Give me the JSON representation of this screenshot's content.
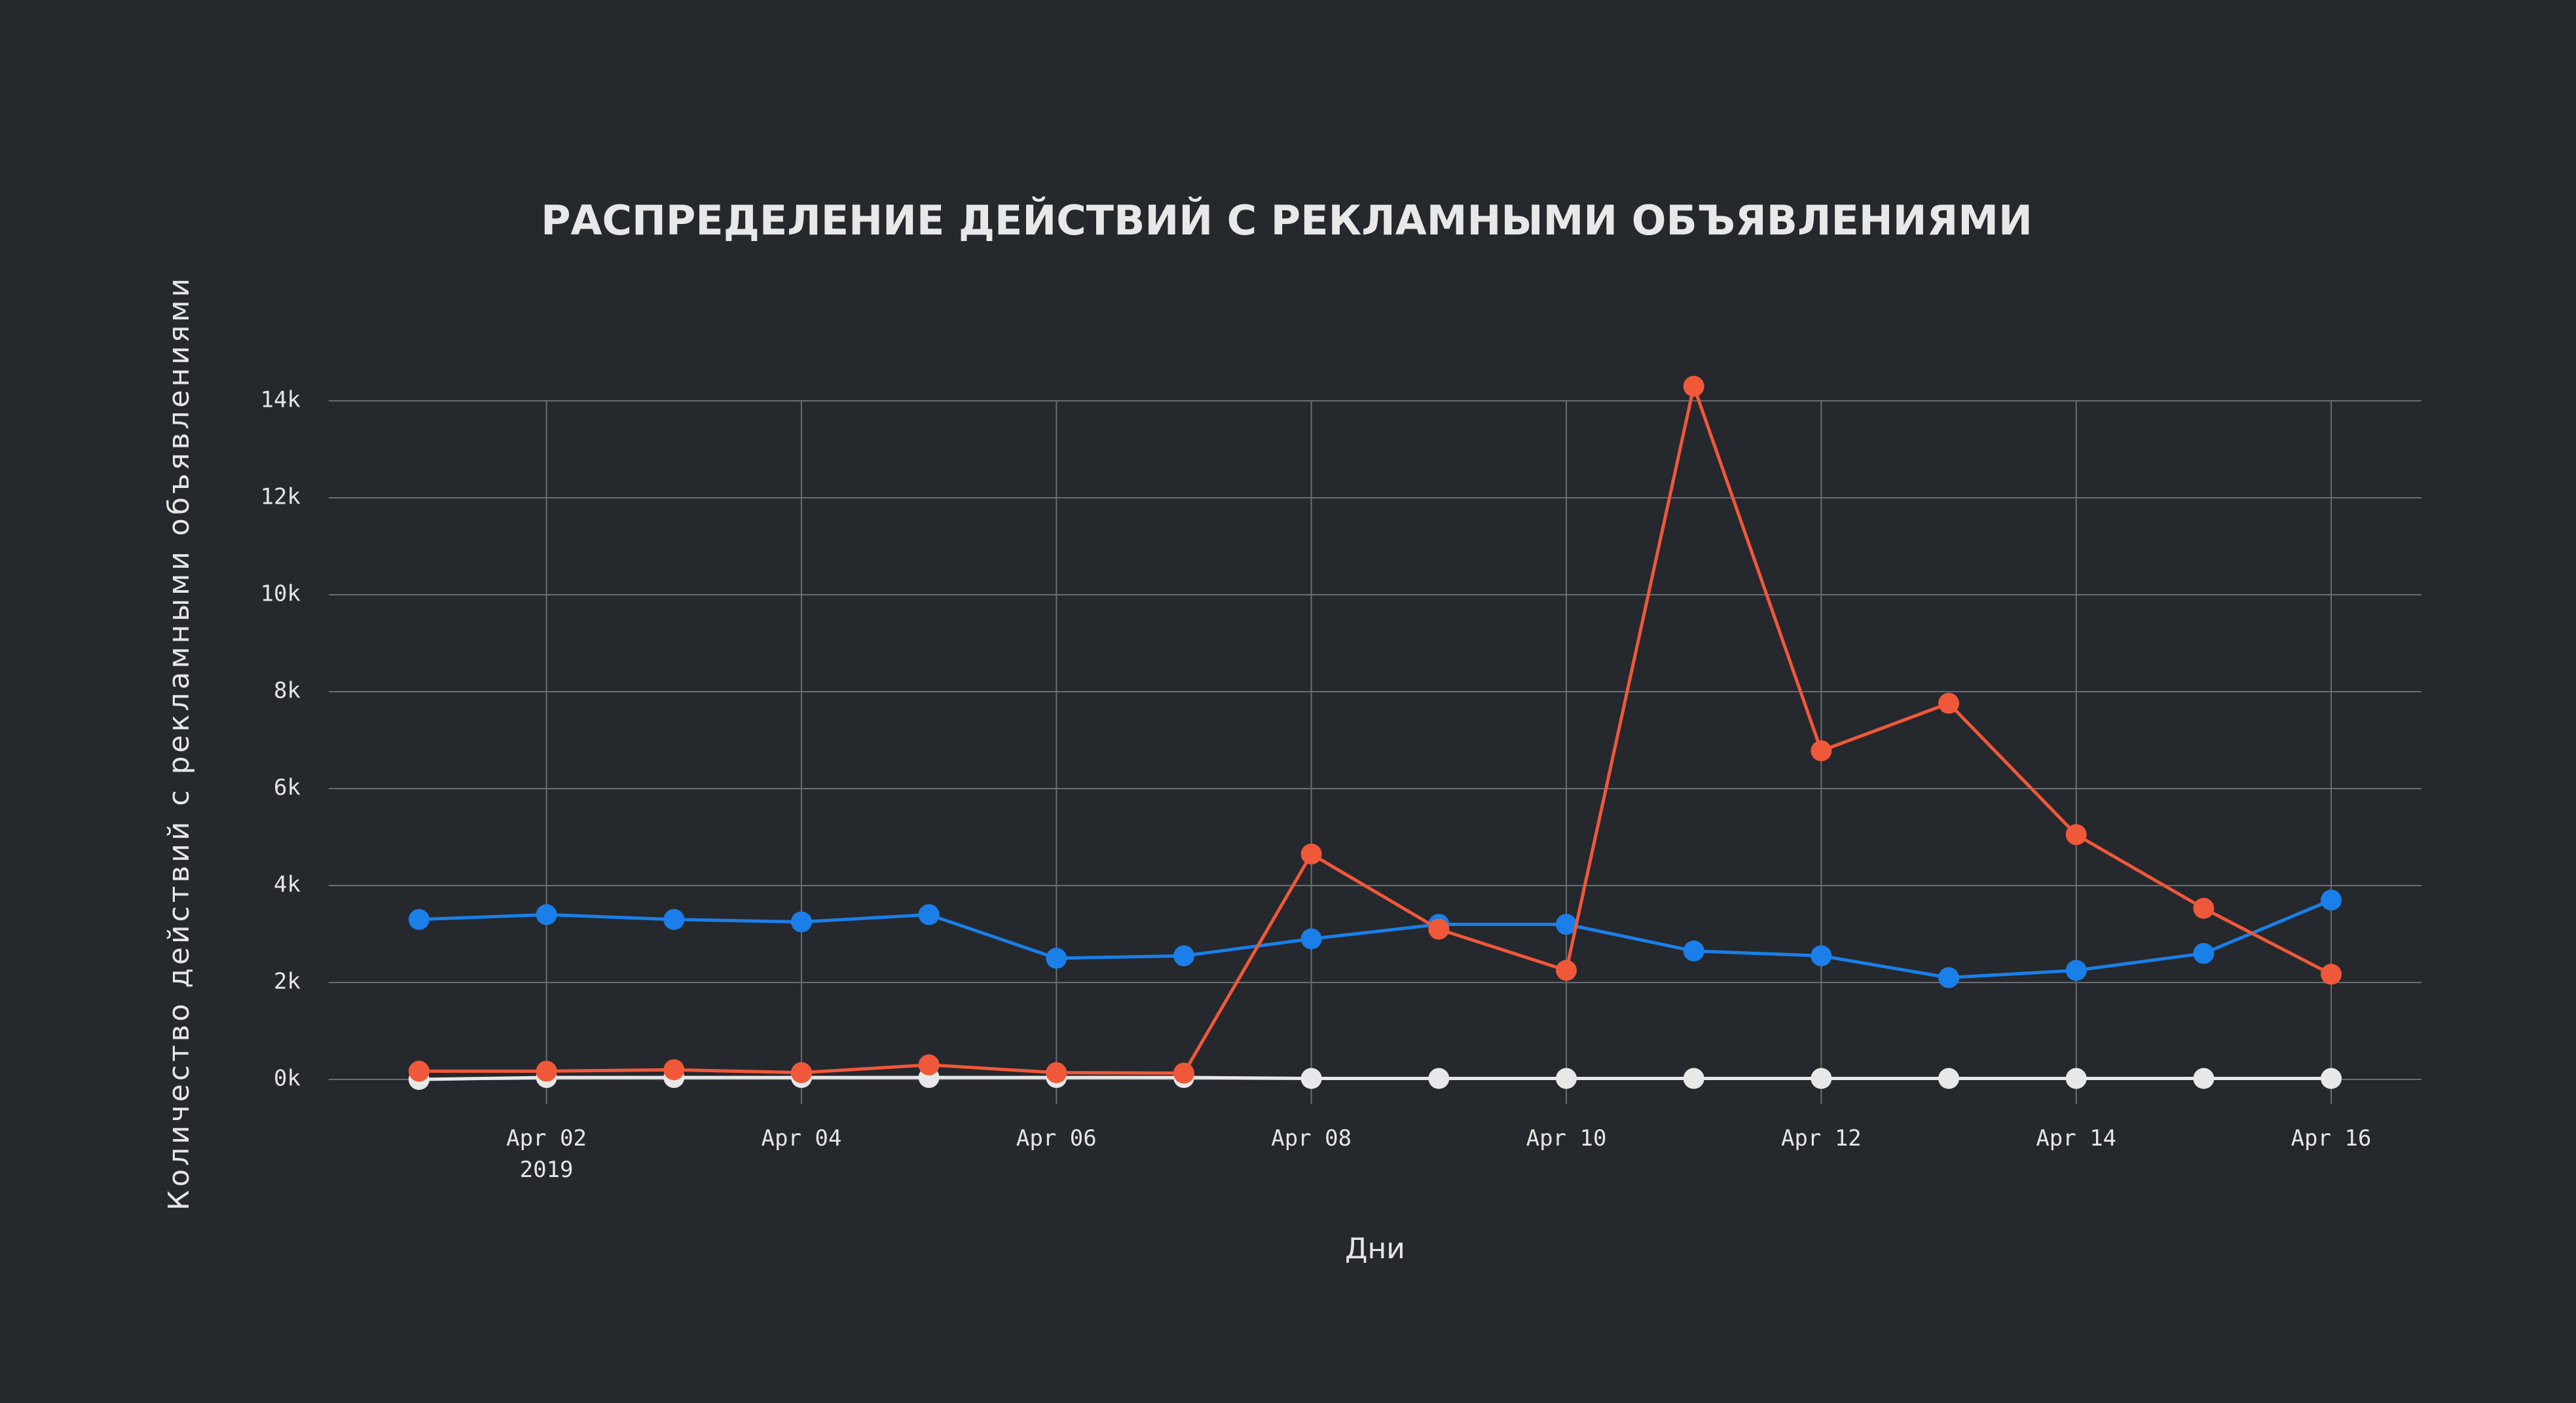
{
  "chart_data": {
    "type": "line",
    "title": "РАСПРЕДЕЛЕНИЕ ДЕЙСТВИЙ С РЕКЛАМНЫМИ ОБЪЯВЛЕНИЯМИ",
    "x_label": "Дни",
    "y_label": "Количество действий с рекламными объявлениями",
    "x": [
      "2019-04-01",
      "2019-04-02",
      "2019-04-03",
      "2019-04-04",
      "2019-04-05",
      "2019-04-06",
      "2019-04-07",
      "2019-04-08",
      "2019-04-09",
      "2019-04-10",
      "2019-04-11",
      "2019-04-12",
      "2019-04-13",
      "2019-04-14",
      "2019-04-15",
      "2019-04-16"
    ],
    "series": [
      {
        "color": "#e8e8e8",
        "values": [
          0,
          40,
          40,
          40,
          40,
          40,
          40,
          20,
          20,
          20,
          20,
          20,
          20,
          20,
          20,
          20
        ]
      },
      {
        "color": "#1a7fe8",
        "values": [
          3300,
          3400,
          3300,
          3250,
          3400,
          2500,
          2550,
          2900,
          3200,
          3200,
          2650,
          2550,
          2100,
          2250,
          2600,
          3700
        ]
      },
      {
        "color": "#f0583a",
        "values": [
          170,
          170,
          200,
          140,
          300,
          140,
          130,
          4650,
          3100,
          2250,
          14300,
          6780,
          7760,
          5050,
          3530,
          2170
        ]
      }
    ],
    "xlim": [
      "2019-03-31T07:00",
      "2019-04-16T17:00"
    ],
    "xticks": [
      {
        "value": "2019-04-02",
        "label": "Apr 02\n2019"
      },
      {
        "value": "2019-04-04",
        "label": "Apr 04"
      },
      {
        "value": "2019-04-06",
        "label": "Apr 06"
      },
      {
        "value": "2019-04-08",
        "label": "Apr 08"
      },
      {
        "value": "2019-04-10",
        "label": "Apr 10"
      },
      {
        "value": "2019-04-12",
        "label": "Apr 12"
      },
      {
        "value": "2019-04-14",
        "label": "Apr 14"
      },
      {
        "value": "2019-04-16",
        "label": "Apr 16"
      }
    ],
    "ylim": [
      0,
      14000
    ],
    "yticks": [
      {
        "value": 0,
        "label": "0k"
      },
      {
        "value": 2000,
        "label": "2k"
      },
      {
        "value": 4000,
        "label": "4k"
      },
      {
        "value": 6000,
        "label": "6k"
      },
      {
        "value": 8000,
        "label": "8k"
      },
      {
        "value": 10000,
        "label": "10k"
      },
      {
        "value": 12000,
        "label": "12k"
      },
      {
        "value": 14000,
        "label": "14k"
      }
    ],
    "grid": true
  }
}
